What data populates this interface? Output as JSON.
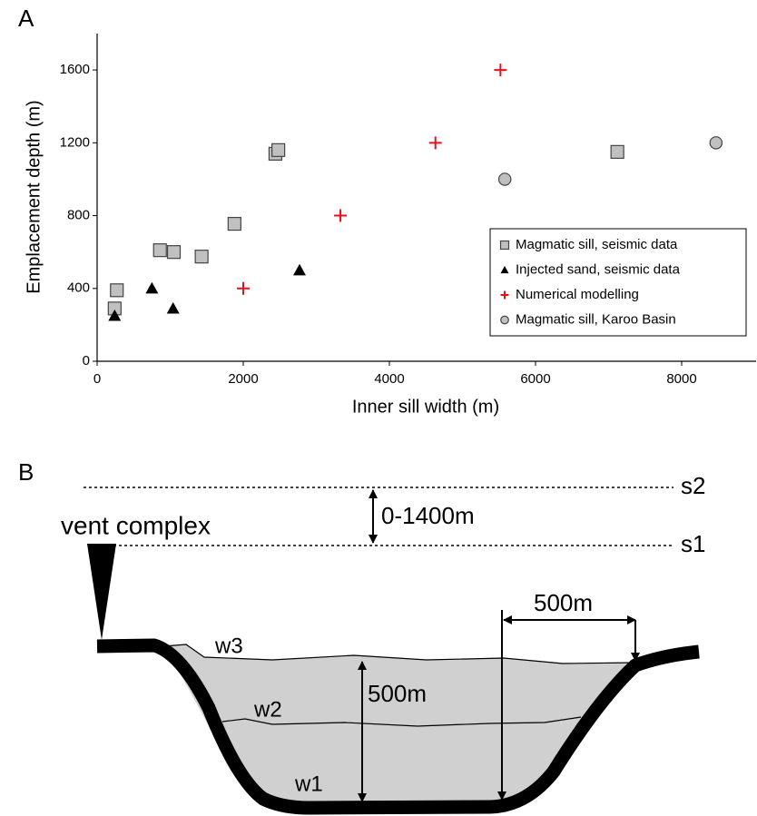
{
  "panel_labels": {
    "a": "A",
    "b": "B"
  },
  "chart_data": {
    "type": "scatter",
    "x_label": "Inner sill width (m)",
    "y_label": "Emplacement depth (m)",
    "xlim": [
      0,
      9000
    ],
    "xticks": [
      0,
      2000,
      4000,
      6000,
      8000
    ],
    "ylim": [
      0,
      1800
    ],
    "yticks": [
      0,
      400,
      800,
      1200,
      1600
    ],
    "grid": false,
    "legend": "lower right",
    "series": [
      {
        "name": "Magmatic sill, seismic data",
        "marker": "square",
        "color": "#c0c0c0",
        "x": [
          240,
          270,
          860,
          1050,
          1430,
          1880,
          2440,
          2480,
          7120
        ],
        "values": [
          290,
          390,
          610,
          600,
          575,
          755,
          1140,
          1160,
          1150
        ]
      },
      {
        "name": "Injected sand, seismic data",
        "marker": "triangle",
        "color": "#000000",
        "x": [
          240,
          750,
          1040,
          2770
        ],
        "values": [
          250,
          400,
          290,
          500
        ]
      },
      {
        "name": "Numerical modelling",
        "marker": "cross",
        "color": "#e8101a",
        "x": [
          2000,
          3330,
          4630,
          5520
        ],
        "values": [
          400,
          800,
          1200,
          1600
        ]
      },
      {
        "name": "Magmatic sill, Karoo Basin",
        "marker": "circle",
        "color": "#c0c0c0",
        "x": [
          5580,
          8470
        ],
        "values": [
          1000,
          1200
        ]
      }
    ]
  },
  "diagram": {
    "vent": "vent complex",
    "depth_range": "0-1400m",
    "s2": "s2",
    "s1": "s1",
    "width": "500m",
    "depth": "500m",
    "w3": "w3",
    "w2": "w2",
    "w1": "w1"
  }
}
